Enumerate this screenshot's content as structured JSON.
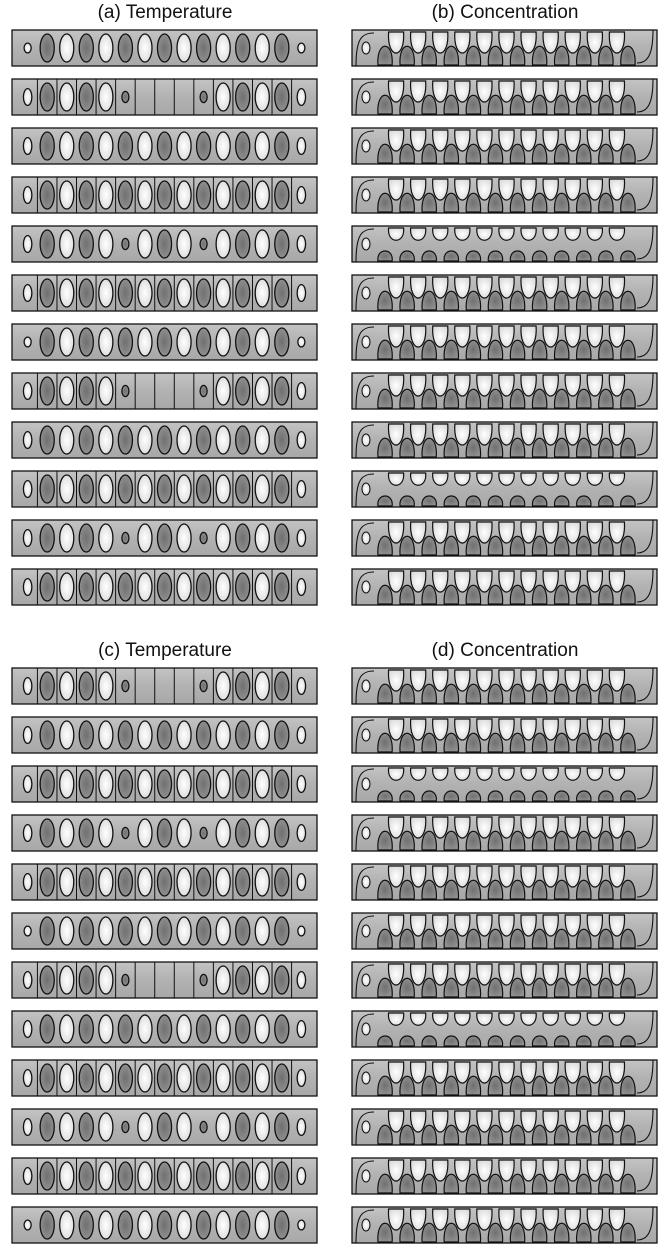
{
  "panels": [
    {
      "title": "(a) Temperature"
    },
    {
      "title": "(b) Concentration"
    },
    {
      "title": "(c) Temperature"
    },
    {
      "title": "(d) Concentration"
    }
  ]
}
